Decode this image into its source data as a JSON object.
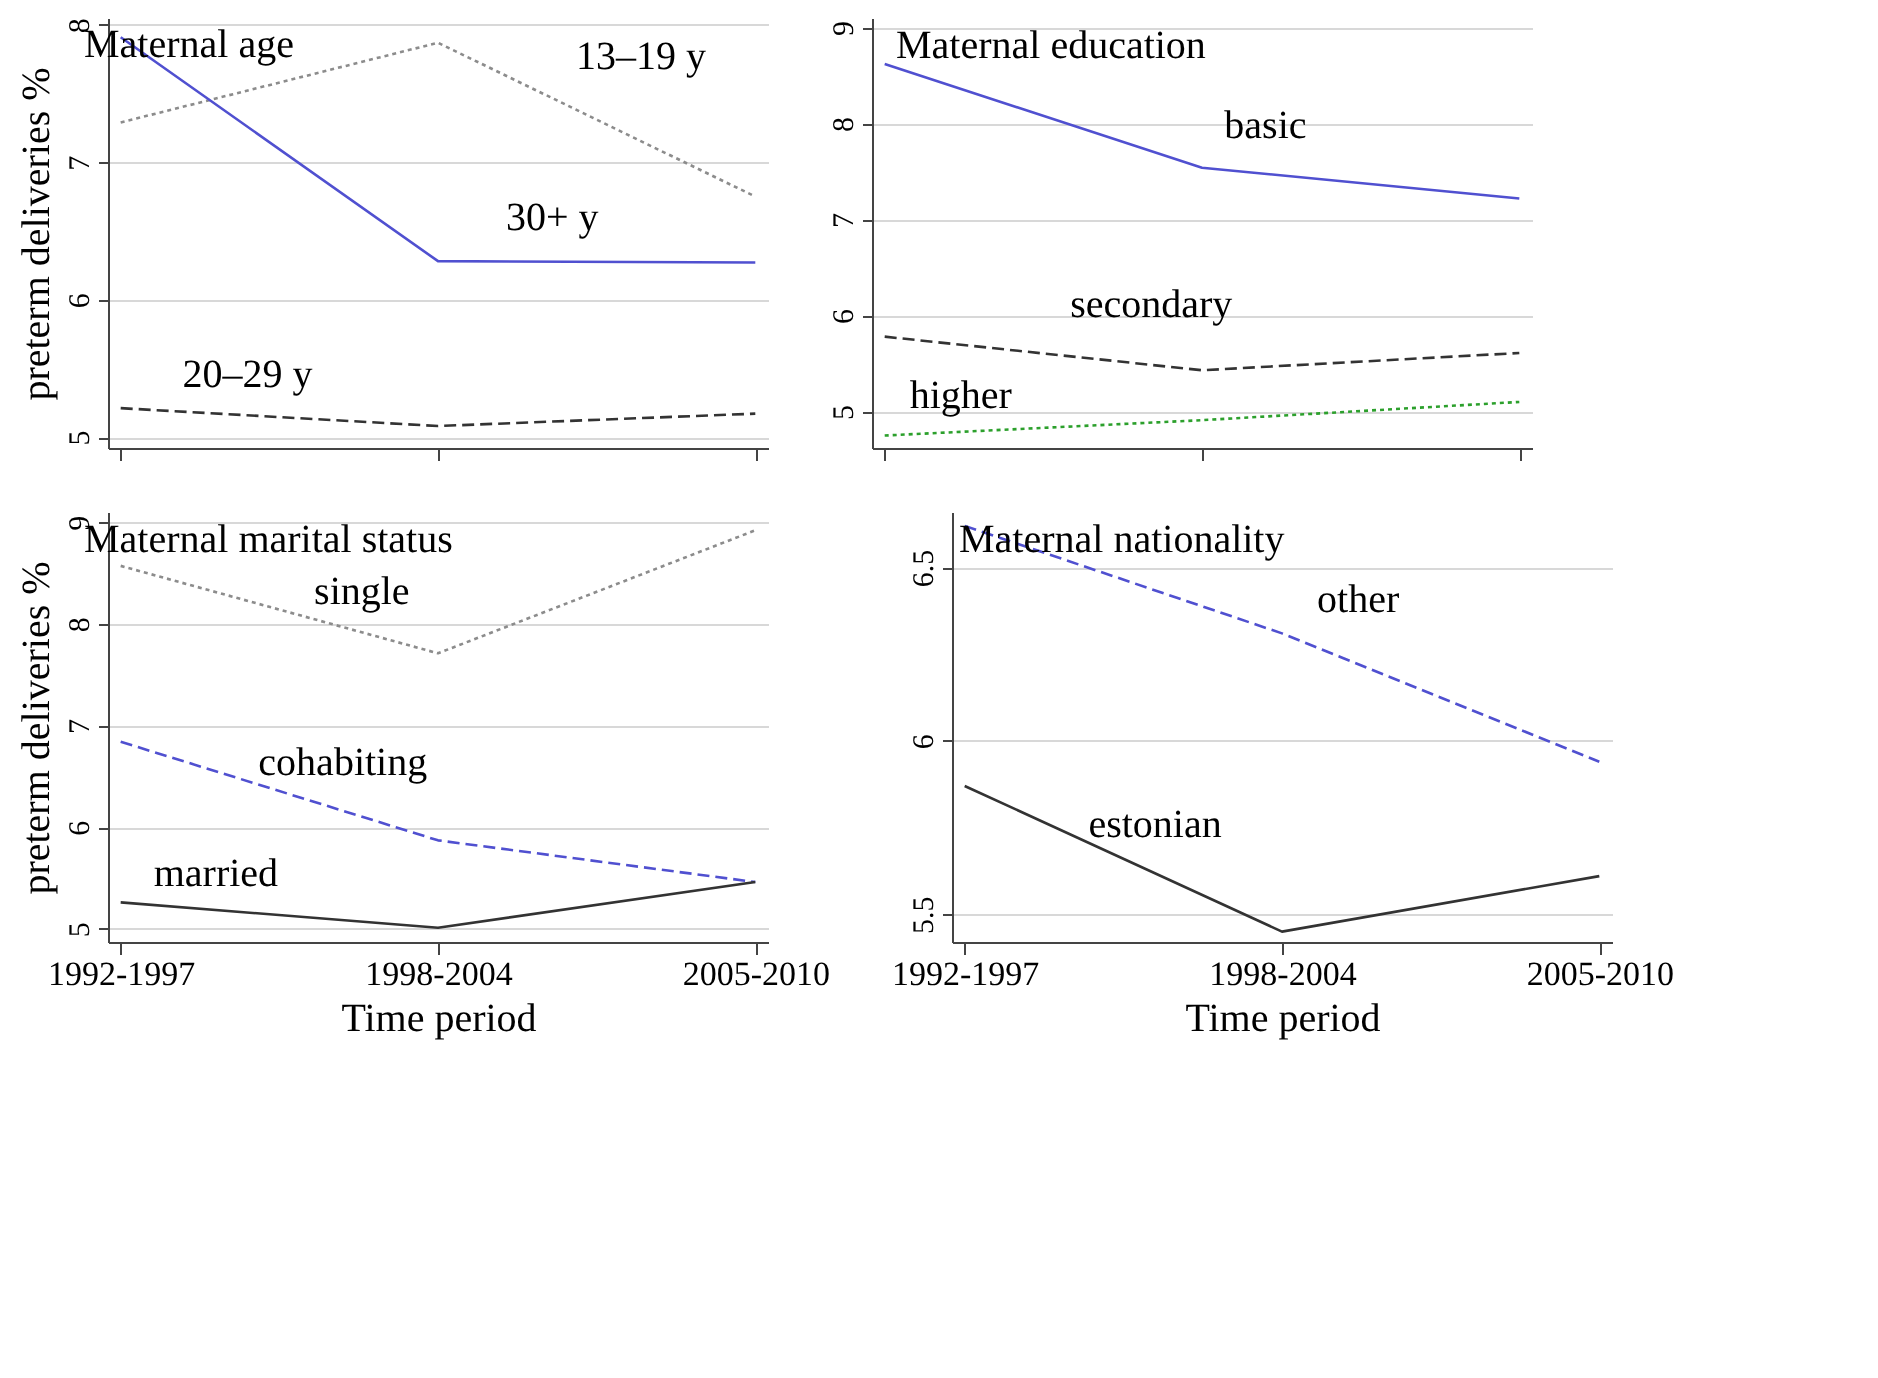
{
  "chart_data": [
    {
      "type": "line",
      "title": "Maternal age",
      "ylabel": "preterm deliveries %",
      "categories": [
        null,
        null,
        null
      ],
      "ylim": [
        4.92,
        8.05
      ],
      "yticks": [
        5,
        6,
        7,
        8
      ],
      "grid": "y",
      "tick_labels": "y",
      "series": [
        {
          "name": "13–19 y",
          "color": "#8c8c8c",
          "line_style": "dotted",
          "values": [
            7.29,
            7.87,
            6.75
          ]
        },
        {
          "name": "30+ y",
          "color": "#5050d0",
          "line_style": "solid",
          "values": [
            7.91,
            6.28,
            6.27
          ]
        },
        {
          "name": "20–29 y",
          "color": "#333333",
          "line_style": "dashed",
          "values": [
            5.21,
            5.08,
            5.17
          ]
        }
      ]
    },
    {
      "type": "line",
      "title": "Maternal education",
      "categories": [
        null,
        null,
        null
      ],
      "ylim": [
        4.62,
        9.1
      ],
      "yticks": [
        5,
        6,
        7,
        8,
        9
      ],
      "grid": "y",
      "tick_labels": "y",
      "series": [
        {
          "name": "basic",
          "color": "#5050d0",
          "line_style": "solid",
          "values": [
            8.62,
            7.54,
            7.22
          ]
        },
        {
          "name": "secondary",
          "color": "#333333",
          "line_style": "dashed",
          "values": [
            5.78,
            5.43,
            5.61
          ]
        },
        {
          "name": "higher",
          "color": "#2ca02c",
          "line_style": "dotted",
          "values": [
            4.75,
            4.91,
            5.1
          ]
        }
      ]
    },
    {
      "type": "line",
      "title": "Maternal marital status",
      "ylabel": "preterm deliveries %",
      "xlabel": "Time period",
      "categories": [
        "1992-1997",
        "1998-2004",
        "2005-2010"
      ],
      "ylim": [
        4.87,
        9.1
      ],
      "yticks": [
        5,
        6,
        7,
        8,
        9
      ],
      "grid": "y",
      "series": [
        {
          "name": "single",
          "color": "#8c8c8c",
          "line_style": "dotted",
          "values": [
            8.57,
            7.71,
            8.92
          ]
        },
        {
          "name": "cohabiting",
          "color": "#5050d0",
          "line_style": "dashed",
          "values": [
            6.84,
            5.87,
            5.46
          ]
        },
        {
          "name": "married",
          "color": "#333333",
          "line_style": "solid",
          "values": [
            5.26,
            5.01,
            5.46
          ]
        }
      ]
    },
    {
      "type": "line",
      "title": "Maternal nationality",
      "xlabel": "Time period",
      "categories": [
        "1992-1997",
        "1998-2004",
        "2005-2010"
      ],
      "ylim": [
        5.42,
        6.66
      ],
      "yticks": [
        5.5,
        6,
        6.5
      ],
      "grid": "y",
      "series": [
        {
          "name": "other",
          "color": "#5050d0",
          "line_style": "dashed",
          "values": [
            6.62,
            6.31,
            5.94
          ]
        },
        {
          "name": "estonian",
          "color": "#333333",
          "line_style": "solid",
          "values": [
            5.87,
            5.45,
            5.61
          ]
        }
      ]
    }
  ]
}
